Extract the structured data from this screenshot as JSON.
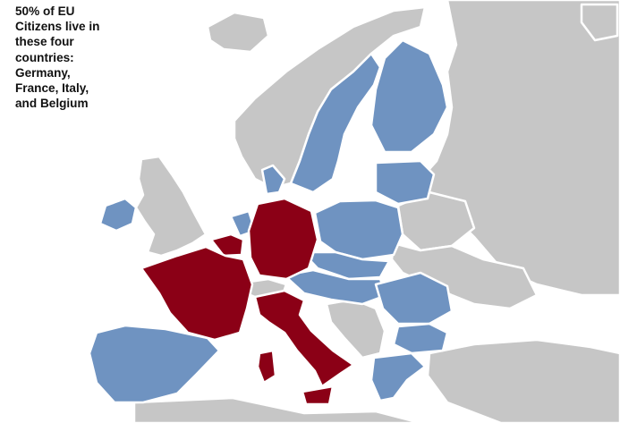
{
  "caption": {
    "lines": [
      "50% of EU",
      "Citizens live in",
      "these four",
      "countries:",
      "Germany,",
      "France, Italy,",
      "and Belgium"
    ]
  },
  "colors": {
    "highlighted": "#8b0016",
    "eu_member": "#6f93c1",
    "non_eu": "#c6c6c6",
    "sea": "#ffffff",
    "borders": "#ffffff"
  },
  "highlighted_countries": [
    "Germany",
    "France",
    "Italy",
    "Belgium"
  ],
  "eu_member_countries": [
    "Spain",
    "Portugal",
    "Ireland",
    "Netherlands",
    "Luxembourg",
    "Denmark",
    "Sweden",
    "Finland",
    "Estonia",
    "Latvia",
    "Lithuania",
    "Poland",
    "Czech Republic",
    "Slovakia",
    "Austria",
    "Slovenia",
    "Hungary",
    "Romania",
    "Bulgaria",
    "Greece"
  ],
  "non_eu_countries": [
    "Norway",
    "Iceland",
    "United Kingdom",
    "Switzerland",
    "Russia",
    "Belarus",
    "Ukraine",
    "Moldova",
    "Serbia",
    "Bosnia",
    "Croatia",
    "Albania",
    "Macedonia",
    "Montenegro",
    "Turkey"
  ]
}
